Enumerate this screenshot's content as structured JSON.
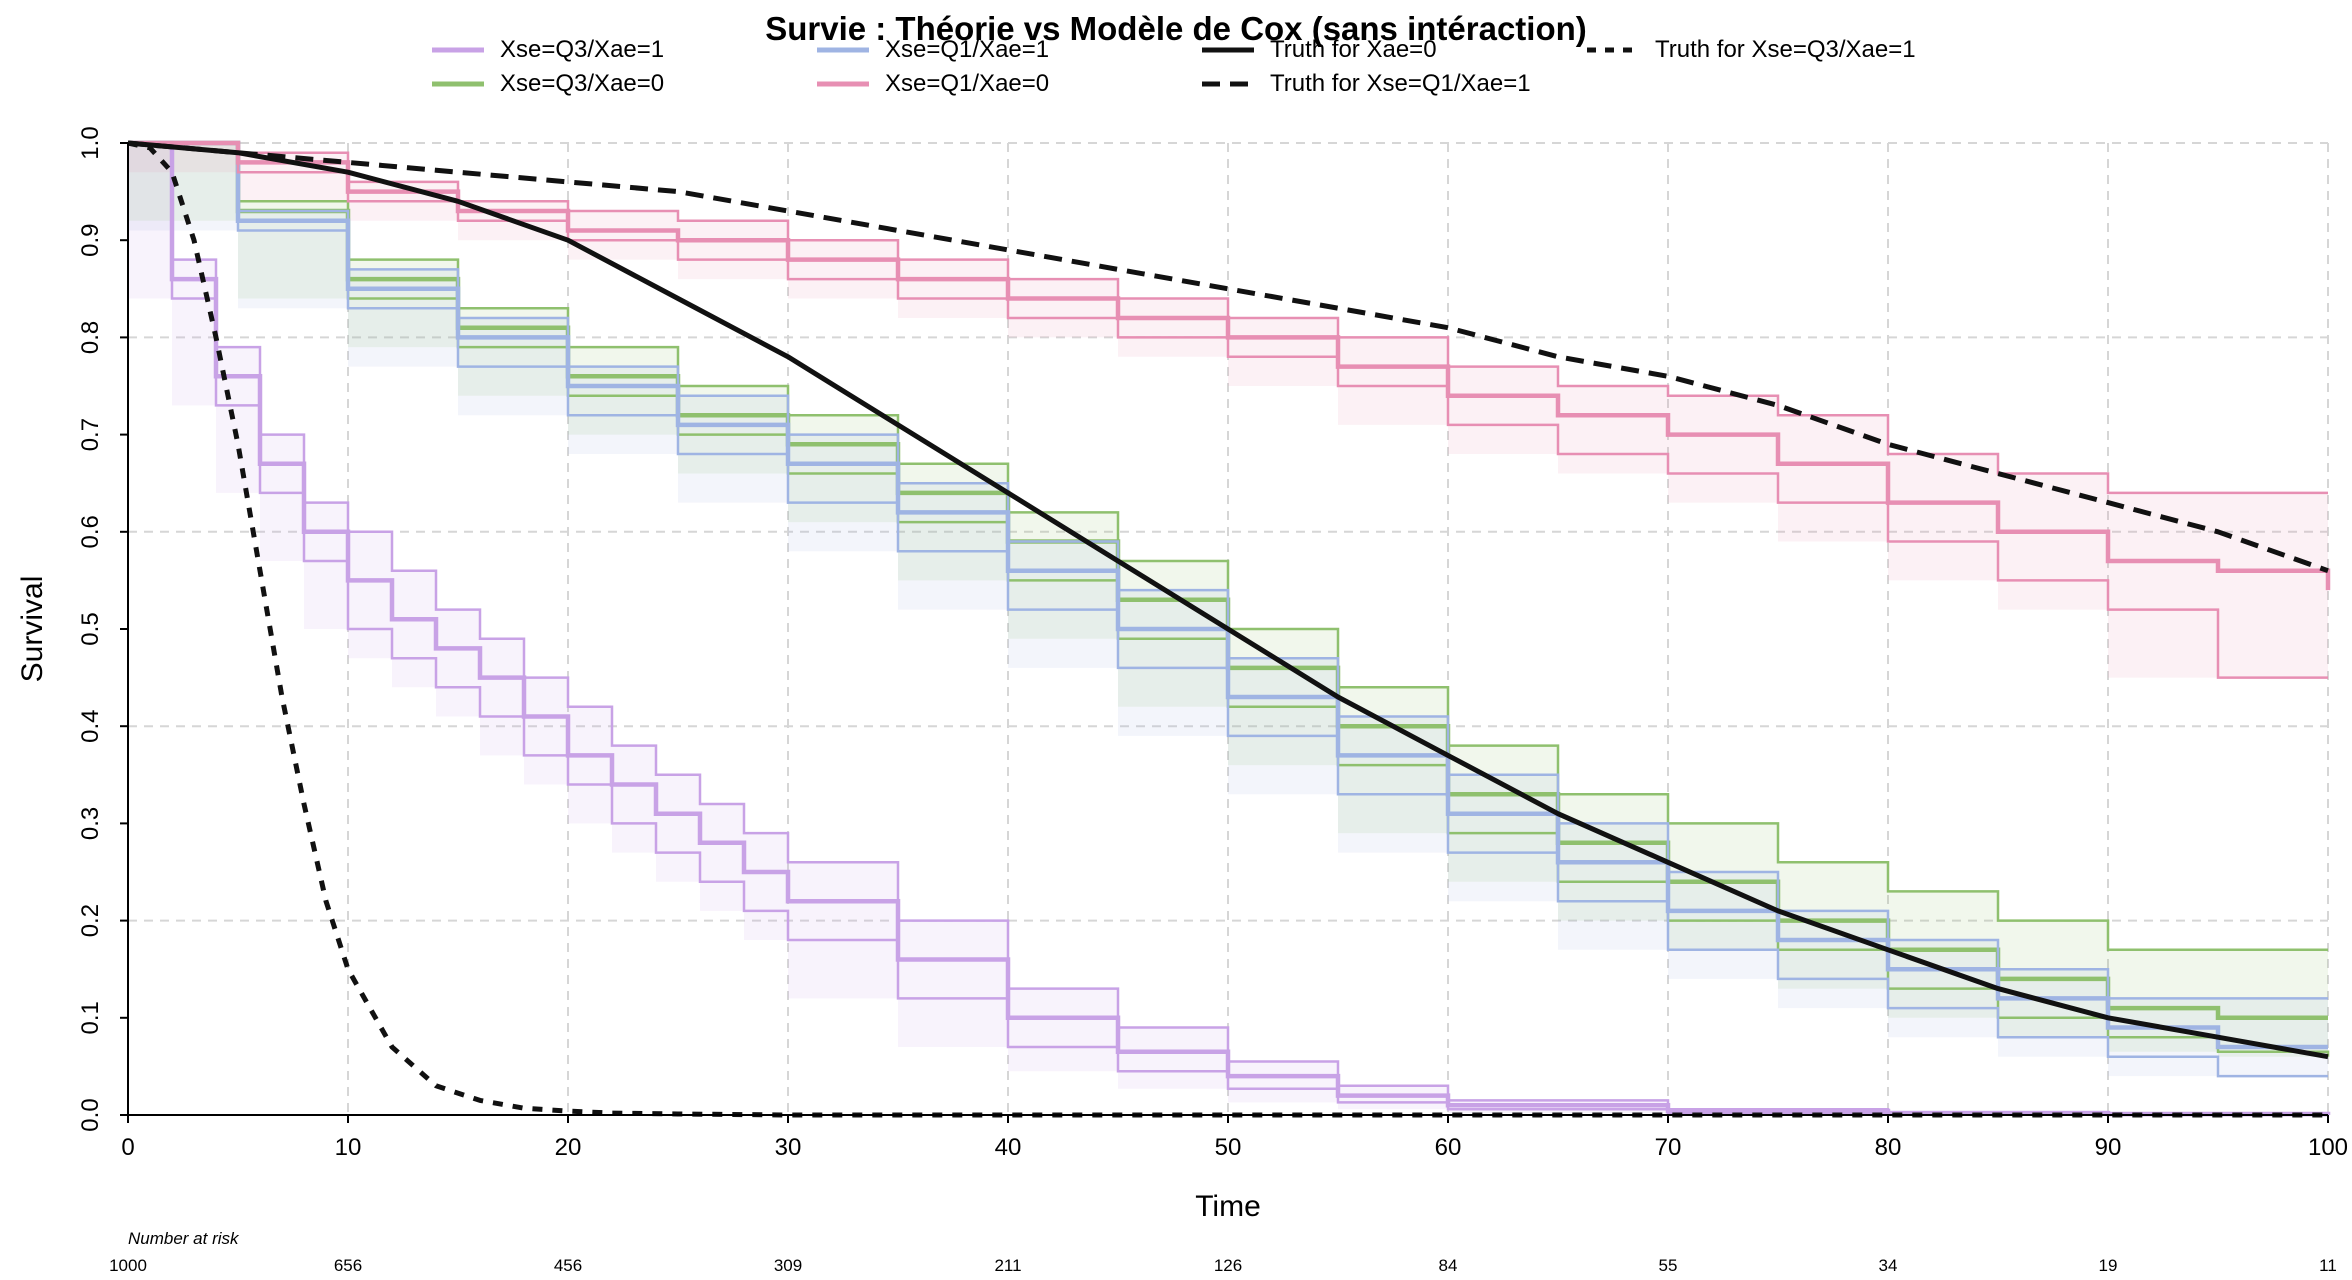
{
  "chart_data": {
    "type": "line",
    "title": "Survie : Théorie vs Modèle de Cox (sans intéraction)",
    "xlabel": "Time",
    "ylabel": "Survival",
    "xlim": [
      0,
      100
    ],
    "ylim": [
      0,
      1
    ],
    "xticks": [
      0,
      10,
      20,
      30,
      40,
      50,
      60,
      70,
      80,
      90,
      100
    ],
    "yticks": [
      0.0,
      0.1,
      0.2,
      0.3,
      0.4,
      0.5,
      0.6,
      0.7,
      0.8,
      0.9,
      1.0
    ],
    "grid": true,
    "grid_style": "dashed",
    "legend_position": "top",
    "risk_table": {
      "label": "Number at risk",
      "times": [
        0,
        10,
        20,
        30,
        40,
        50,
        60,
        70,
        80,
        90,
        100
      ],
      "values": [
        "1000",
        "656",
        "456",
        "309",
        "211",
        "126",
        "84",
        "55",
        "34",
        "19",
        "11"
      ]
    },
    "series": [
      {
        "name": "Xse=Q3/Xae=1",
        "color": "#c8a2e6",
        "style": "step",
        "x": [
          0,
          2,
          4,
          6,
          8,
          10,
          12,
          14,
          16,
          18,
          20,
          22,
          24,
          26,
          28,
          30,
          35,
          40,
          45,
          50,
          55,
          60,
          70,
          80,
          90,
          100
        ],
        "y": [
          1.0,
          0.86,
          0.76,
          0.67,
          0.6,
          0.55,
          0.51,
          0.48,
          0.45,
          0.41,
          0.37,
          0.34,
          0.31,
          0.28,
          0.25,
          0.22,
          0.16,
          0.1,
          0.065,
          0.04,
          0.02,
          0.01,
          0.004,
          0.002,
          0.001,
          0.0
        ],
        "lower": [
          1.0,
          0.84,
          0.73,
          0.64,
          0.57,
          0.5,
          0.47,
          0.44,
          0.41,
          0.37,
          0.34,
          0.3,
          0.27,
          0.24,
          0.21,
          0.18,
          0.12,
          0.07,
          0.045,
          0.027,
          0.013,
          0.006,
          0.002,
          0.001,
          0.0,
          0.0
        ],
        "upper": [
          1.0,
          0.88,
          0.79,
          0.7,
          0.63,
          0.6,
          0.56,
          0.52,
          0.49,
          0.45,
          0.42,
          0.38,
          0.35,
          0.32,
          0.29,
          0.26,
          0.2,
          0.13,
          0.09,
          0.055,
          0.03,
          0.015,
          0.006,
          0.003,
          0.001,
          0.0
        ]
      },
      {
        "name": "Xse=Q3/Xae=0",
        "color": "#8fc06e",
        "style": "step",
        "x": [
          0,
          5,
          10,
          15,
          20,
          25,
          30,
          35,
          40,
          45,
          50,
          55,
          60,
          65,
          70,
          75,
          80,
          85,
          90,
          95,
          100
        ],
        "y": [
          1.0,
          0.93,
          0.86,
          0.81,
          0.76,
          0.72,
          0.69,
          0.64,
          0.59,
          0.53,
          0.46,
          0.4,
          0.33,
          0.28,
          0.24,
          0.2,
          0.17,
          0.14,
          0.11,
          0.1,
          0.1
        ],
        "lower": [
          1.0,
          0.92,
          0.84,
          0.79,
          0.74,
          0.7,
          0.66,
          0.61,
          0.55,
          0.49,
          0.42,
          0.36,
          0.29,
          0.24,
          0.2,
          0.17,
          0.13,
          0.1,
          0.08,
          0.065,
          0.06
        ],
        "upper": [
          1.0,
          0.94,
          0.88,
          0.83,
          0.79,
          0.75,
          0.72,
          0.67,
          0.62,
          0.57,
          0.5,
          0.44,
          0.38,
          0.33,
          0.3,
          0.26,
          0.23,
          0.2,
          0.17,
          0.17,
          0.17
        ]
      },
      {
        "name": "Xse=Q1/Xae=1",
        "color": "#9fb4e3",
        "style": "step",
        "x": [
          0,
          5,
          10,
          15,
          20,
          25,
          30,
          35,
          40,
          45,
          50,
          55,
          60,
          65,
          70,
          75,
          80,
          85,
          90,
          95,
          100
        ],
        "y": [
          1.0,
          0.92,
          0.85,
          0.8,
          0.75,
          0.71,
          0.67,
          0.62,
          0.56,
          0.5,
          0.43,
          0.37,
          0.31,
          0.26,
          0.21,
          0.18,
          0.15,
          0.12,
          0.09,
          0.07,
          0.07
        ],
        "lower": [
          1.0,
          0.91,
          0.83,
          0.77,
          0.72,
          0.68,
          0.63,
          0.58,
          0.52,
          0.46,
          0.39,
          0.33,
          0.27,
          0.22,
          0.17,
          0.14,
          0.11,
          0.08,
          0.06,
          0.04,
          0.04
        ],
        "upper": [
          1.0,
          0.93,
          0.87,
          0.82,
          0.77,
          0.74,
          0.7,
          0.65,
          0.59,
          0.54,
          0.47,
          0.41,
          0.35,
          0.3,
          0.25,
          0.21,
          0.18,
          0.15,
          0.12,
          0.12,
          0.12
        ]
      },
      {
        "name": "Xse=Q1/Xae=0",
        "color": "#e78fb3",
        "style": "step",
        "x": [
          0,
          5,
          10,
          15,
          20,
          25,
          30,
          35,
          40,
          45,
          50,
          55,
          60,
          65,
          70,
          75,
          80,
          85,
          90,
          95,
          100
        ],
        "y": [
          1.0,
          0.98,
          0.95,
          0.93,
          0.91,
          0.9,
          0.88,
          0.86,
          0.84,
          0.82,
          0.8,
          0.77,
          0.74,
          0.72,
          0.7,
          0.67,
          0.63,
          0.6,
          0.57,
          0.56,
          0.54
        ],
        "lower": [
          1.0,
          0.97,
          0.94,
          0.92,
          0.9,
          0.88,
          0.86,
          0.84,
          0.82,
          0.8,
          0.78,
          0.75,
          0.71,
          0.68,
          0.66,
          0.63,
          0.59,
          0.55,
          0.52,
          0.45,
          0.45
        ],
        "upper": [
          1.0,
          0.99,
          0.96,
          0.94,
          0.93,
          0.92,
          0.9,
          0.88,
          0.86,
          0.84,
          0.82,
          0.8,
          0.77,
          0.75,
          0.74,
          0.72,
          0.68,
          0.66,
          0.64,
          0.64,
          0.64
        ]
      },
      {
        "name": "Truth for Xae=0",
        "color": "#111111",
        "style": "solid",
        "x": [
          0,
          5,
          10,
          15,
          20,
          25,
          30,
          35,
          40,
          45,
          50,
          55,
          60,
          65,
          70,
          75,
          80,
          85,
          90,
          95,
          100
        ],
        "y": [
          1.0,
          0.99,
          0.97,
          0.94,
          0.9,
          0.84,
          0.78,
          0.71,
          0.64,
          0.57,
          0.5,
          0.43,
          0.37,
          0.31,
          0.26,
          0.21,
          0.17,
          0.13,
          0.1,
          0.08,
          0.06
        ]
      },
      {
        "name": "Truth for Xse=Q1/Xae=1",
        "color": "#111111",
        "style": "dashed",
        "x": [
          0,
          5,
          10,
          15,
          20,
          25,
          30,
          35,
          40,
          45,
          50,
          55,
          60,
          65,
          70,
          75,
          80,
          85,
          90,
          95,
          100
        ],
        "y": [
          1.0,
          0.99,
          0.98,
          0.97,
          0.96,
          0.95,
          0.93,
          0.91,
          0.89,
          0.87,
          0.85,
          0.83,
          0.81,
          0.78,
          0.76,
          0.73,
          0.69,
          0.66,
          0.63,
          0.6,
          0.56
        ]
      },
      {
        "name": "Truth for Xse=Q3/Xae=1",
        "color": "#111111",
        "style": "dotted",
        "x": [
          0,
          1,
          2,
          3,
          4,
          5,
          6,
          7,
          8,
          9,
          10,
          12,
          14,
          16,
          18,
          20,
          22,
          25,
          30,
          40,
          60,
          100
        ],
        "y": [
          1.0,
          0.995,
          0.97,
          0.9,
          0.8,
          0.69,
          0.56,
          0.43,
          0.32,
          0.22,
          0.15,
          0.07,
          0.03,
          0.015,
          0.007,
          0.004,
          0.002,
          0.001,
          0.0,
          0.0,
          0.0,
          0.0
        ]
      }
    ]
  }
}
